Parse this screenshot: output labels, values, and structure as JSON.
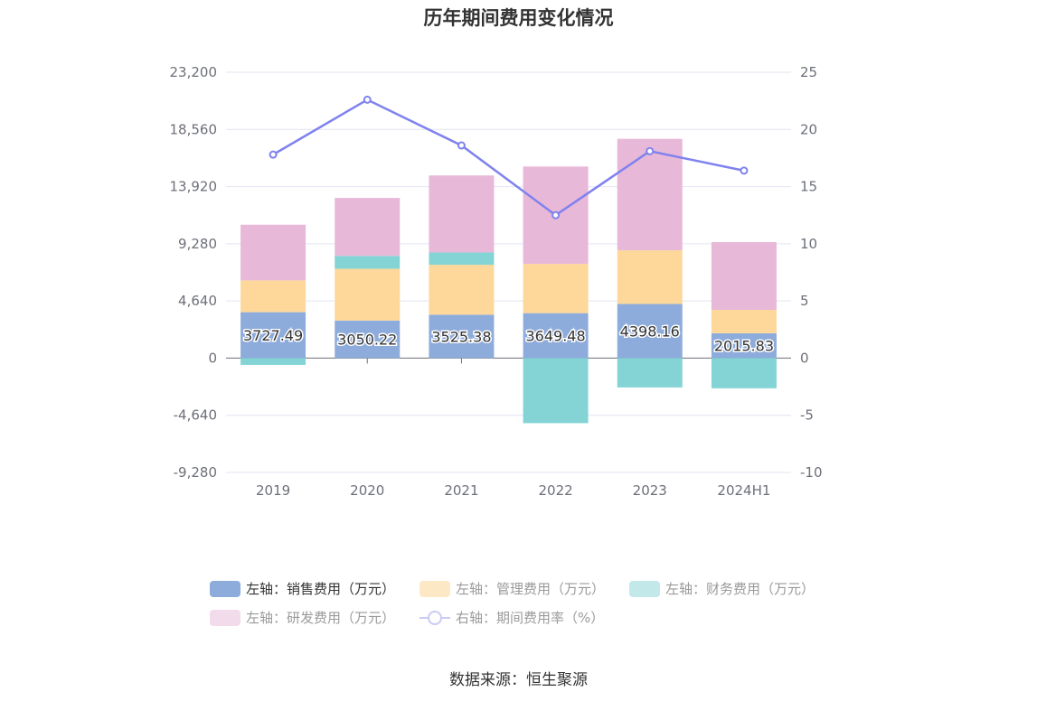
{
  "title": "历年期间费用变化情况",
  "source": "数据来源：恒生聚源",
  "colors": {
    "sales": "#8eacdb",
    "admin": "#fdd89a",
    "finance": "#84d4d6",
    "rd": "#e8b8d8",
    "rate": "#7f82ee"
  },
  "legend": [
    {
      "label": "左轴：销售费用（万元）",
      "swatch": "#8eacdb",
      "dimmed": false
    },
    {
      "label": "左轴：管理费用（万元）",
      "swatch": "#fde8c5",
      "dimmed": true
    },
    {
      "label": "左轴：财务费用（万元）",
      "swatch": "#c2e8ea",
      "dimmed": true
    },
    {
      "label": "左轴：研发费用（万元）",
      "swatch": "#f2dcec",
      "dimmed": true
    },
    {
      "label": "右轴：期间费用率（%）",
      "swatch": "line",
      "dimmed": true
    }
  ],
  "chart_data": {
    "type": "bar",
    "stacked": true,
    "categories": [
      "2019",
      "2020",
      "2021",
      "2022",
      "2023",
      "2024H1"
    ],
    "series": [
      {
        "name": "左轴：销售费用（万元）",
        "axis": "left",
        "values": [
          3727.49,
          3050.22,
          3525.38,
          3649.48,
          4398.16,
          2015.83
        ],
        "data_labels": [
          "3727.49",
          "3050.22",
          "3525.38",
          "3649.48",
          "4398.16",
          "2015.83"
        ]
      },
      {
        "name": "左轴：管理费用（万元）",
        "axis": "left",
        "values": [
          2580,
          4200,
          4050,
          4000,
          4350,
          1900
        ]
      },
      {
        "name": "左轴：财务费用（万元）",
        "axis": "left",
        "values": [
          -550,
          1050,
          1000,
          -5280,
          -2380,
          -2450
        ]
      },
      {
        "name": "左轴：研发费用（万元）",
        "axis": "left",
        "values": [
          4520,
          4700,
          6250,
          7900,
          9050,
          5500
        ]
      },
      {
        "name": "右轴：期间费用率（%）",
        "axis": "right",
        "type": "line",
        "values": [
          17.8,
          22.6,
          18.6,
          12.5,
          18.1,
          16.4
        ]
      }
    ],
    "y_left": {
      "min": -9280,
      "max": 23200,
      "ticks": [
        -9280,
        -4640,
        0,
        4640,
        9280,
        13920,
        18560,
        23200
      ],
      "tick_labels": [
        "-9,280",
        "-4,640",
        "0",
        "4,640",
        "9,280",
        "13,920",
        "18,560",
        "23,200"
      ]
    },
    "y_right": {
      "min": -10,
      "max": 25,
      "ticks": [
        -10,
        -5,
        0,
        5,
        10,
        15,
        20,
        25
      ],
      "tick_labels": [
        "-10",
        "-5",
        "0",
        "5",
        "10",
        "15",
        "20",
        "25"
      ]
    },
    "grid": true,
    "legend_position": "bottom"
  }
}
